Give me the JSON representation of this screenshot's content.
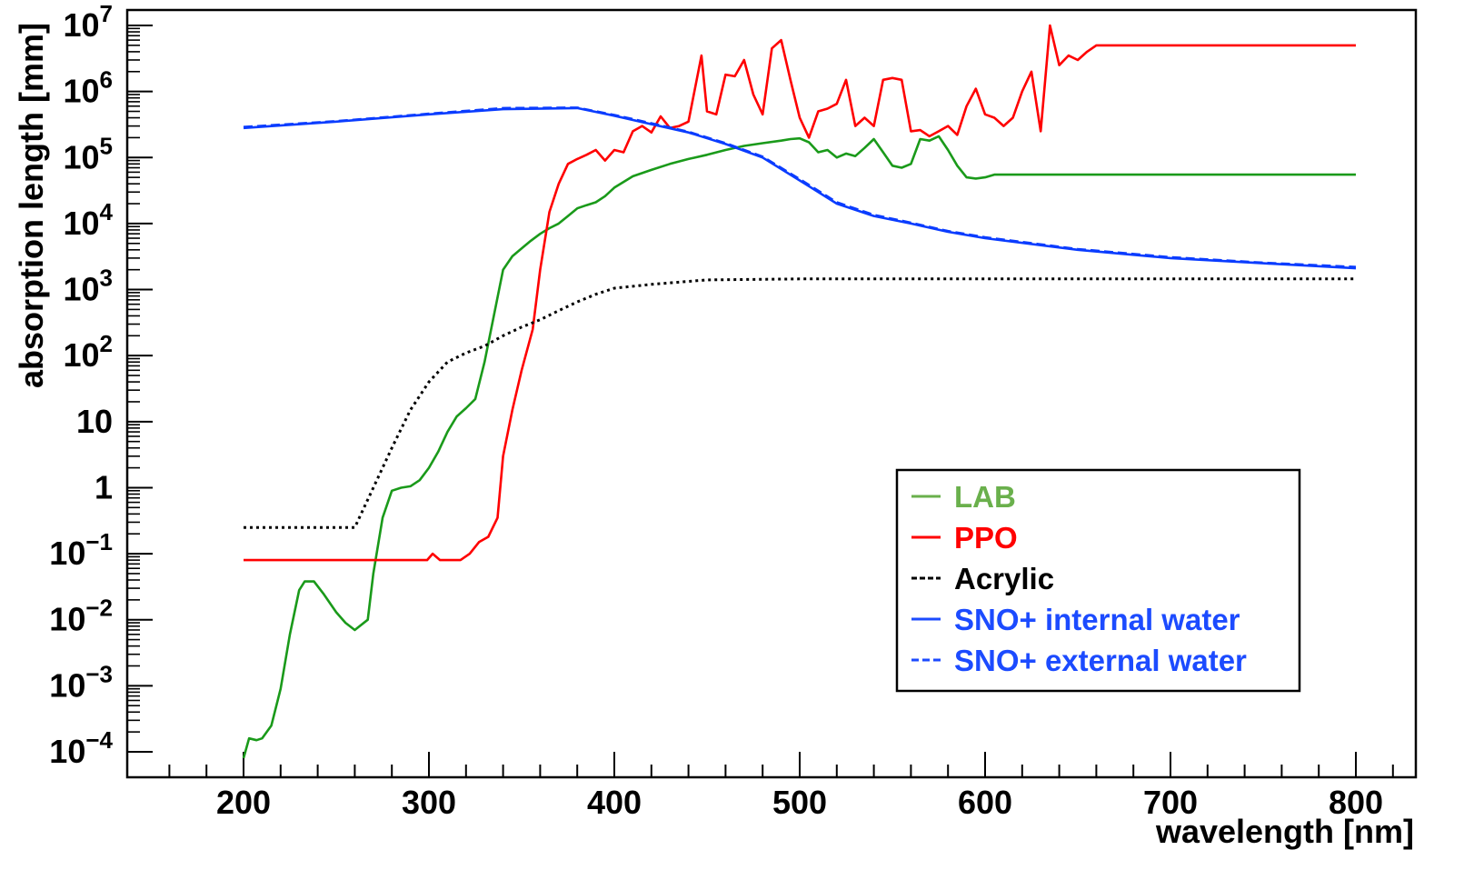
{
  "chart_data": {
    "type": "line",
    "title": "",
    "xlabel": "wavelength [nm]",
    "ylabel": "absorption length [mm]",
    "xlim": [
      140,
      860
    ],
    "ylim": [
      5e-05,
      20000000
    ],
    "yscale": "log",
    "grid": false,
    "legend_position": "bottom-right",
    "x_ticks": [
      {
        "value": 200,
        "label": "200"
      },
      {
        "value": 300,
        "label": "300"
      },
      {
        "value": 400,
        "label": "400"
      },
      {
        "value": 500,
        "label": "500"
      },
      {
        "value": 600,
        "label": "600"
      },
      {
        "value": 700,
        "label": "700"
      },
      {
        "value": 800,
        "label": "800"
      }
    ],
    "y_ticks": [
      {
        "value": 0.0001,
        "base": "10",
        "exp": "−4",
        "label": ""
      },
      {
        "value": 0.001,
        "base": "10",
        "exp": "−3",
        "label": ""
      },
      {
        "value": 0.01,
        "base": "10",
        "exp": "−2",
        "label": ""
      },
      {
        "value": 0.1,
        "base": "10",
        "exp": "−1",
        "label": ""
      },
      {
        "value": 1,
        "base": "",
        "exp": "",
        "label": "1"
      },
      {
        "value": 10,
        "base": "",
        "exp": "",
        "label": "10"
      },
      {
        "value": 100,
        "base": "10",
        "exp": "2",
        "label": ""
      },
      {
        "value": 1000,
        "base": "10",
        "exp": "3",
        "label": ""
      },
      {
        "value": 10000,
        "base": "10",
        "exp": "4",
        "label": ""
      },
      {
        "value": 100000,
        "base": "10",
        "exp": "5",
        "label": ""
      },
      {
        "value": 1000000,
        "base": "10",
        "exp": "6",
        "label": ""
      },
      {
        "value": 10000000,
        "base": "10",
        "exp": "7",
        "label": ""
      }
    ],
    "series": [
      {
        "name": "LAB",
        "color": "#1a9a1a",
        "legend_color": "#6ab04c",
        "style": "solid",
        "points": [
          [
            200,
            8e-05
          ],
          [
            203,
            0.00016
          ],
          [
            207,
            0.00015
          ],
          [
            210,
            0.00016
          ],
          [
            215,
            0.00025
          ],
          [
            220,
            0.0009
          ],
          [
            225,
            0.006
          ],
          [
            230,
            0.028
          ],
          [
            233,
            0.038
          ],
          [
            238,
            0.038
          ],
          [
            243,
            0.025
          ],
          [
            250,
            0.013
          ],
          [
            255,
            0.009
          ],
          [
            260,
            0.007
          ],
          [
            267,
            0.01
          ],
          [
            270,
            0.05
          ],
          [
            275,
            0.35
          ],
          [
            280,
            0.9
          ],
          [
            285,
            1.0
          ],
          [
            290,
            1.05
          ],
          [
            295,
            1.3
          ],
          [
            300,
            2.0
          ],
          [
            305,
            3.5
          ],
          [
            310,
            7
          ],
          [
            315,
            12
          ],
          [
            320,
            16
          ],
          [
            325,
            22
          ],
          [
            330,
            80
          ],
          [
            335,
            400
          ],
          [
            340,
            2000
          ],
          [
            345,
            3200
          ],
          [
            350,
            4200
          ],
          [
            355,
            5500
          ],
          [
            360,
            7000
          ],
          [
            365,
            8500
          ],
          [
            370,
            10000
          ],
          [
            375,
            13000
          ],
          [
            380,
            17000
          ],
          [
            385,
            19000
          ],
          [
            390,
            21000
          ],
          [
            395,
            26000
          ],
          [
            400,
            35000
          ],
          [
            410,
            52000
          ],
          [
            420,
            65000
          ],
          [
            430,
            80000
          ],
          [
            440,
            95000
          ],
          [
            450,
            110000
          ],
          [
            460,
            130000
          ],
          [
            470,
            150000
          ],
          [
            480,
            165000
          ],
          [
            490,
            180000
          ],
          [
            495,
            190000
          ],
          [
            500,
            195000
          ],
          [
            505,
            170000
          ],
          [
            510,
            120000
          ],
          [
            515,
            130000
          ],
          [
            520,
            100000
          ],
          [
            525,
            115000
          ],
          [
            530,
            105000
          ],
          [
            535,
            140000
          ],
          [
            540,
            190000
          ],
          [
            545,
            120000
          ],
          [
            550,
            75000
          ],
          [
            555,
            70000
          ],
          [
            560,
            80000
          ],
          [
            565,
            190000
          ],
          [
            570,
            180000
          ],
          [
            575,
            210000
          ],
          [
            580,
            130000
          ],
          [
            585,
            75000
          ],
          [
            590,
            50000
          ],
          [
            595,
            48000
          ],
          [
            600,
            50000
          ],
          [
            605,
            55000
          ],
          [
            650,
            55000
          ],
          [
            700,
            55000
          ],
          [
            750,
            55000
          ],
          [
            800,
            55000
          ]
        ]
      },
      {
        "name": "PPO",
        "color": "#ff0000",
        "legend_color": "#ff0000",
        "style": "solid",
        "points": [
          [
            200,
            0.08
          ],
          [
            250,
            0.08
          ],
          [
            299,
            0.08
          ],
          [
            302,
            0.1
          ],
          [
            306,
            0.08
          ],
          [
            317,
            0.08
          ],
          [
            322,
            0.1
          ],
          [
            327,
            0.15
          ],
          [
            332,
            0.18
          ],
          [
            337,
            0.35
          ],
          [
            340,
            3
          ],
          [
            345,
            15
          ],
          [
            350,
            60
          ],
          [
            356,
            250
          ],
          [
            360,
            2000
          ],
          [
            365,
            15000
          ],
          [
            370,
            40000
          ],
          [
            375,
            80000
          ],
          [
            380,
            95000
          ],
          [
            385,
            110000
          ],
          [
            390,
            130000
          ],
          [
            395,
            90000
          ],
          [
            400,
            130000
          ],
          [
            405,
            120000
          ],
          [
            410,
            250000
          ],
          [
            415,
            300000
          ],
          [
            420,
            240000
          ],
          [
            425,
            420000
          ],
          [
            430,
            280000
          ],
          [
            435,
            300000
          ],
          [
            440,
            350000
          ],
          [
            447,
            3500000
          ],
          [
            450,
            500000
          ],
          [
            455,
            450000
          ],
          [
            460,
            1800000
          ],
          [
            465,
            1700000
          ],
          [
            470,
            3000000
          ],
          [
            475,
            900000
          ],
          [
            480,
            450000
          ],
          [
            485,
            4500000
          ],
          [
            490,
            6000000
          ],
          [
            495,
            1500000
          ],
          [
            500,
            400000
          ],
          [
            505,
            200000
          ],
          [
            510,
            500000
          ],
          [
            515,
            550000
          ],
          [
            520,
            650000
          ],
          [
            525,
            1500000
          ],
          [
            530,
            300000
          ],
          [
            535,
            400000
          ],
          [
            540,
            300000
          ],
          [
            545,
            1500000
          ],
          [
            550,
            1600000
          ],
          [
            555,
            1500000
          ],
          [
            560,
            250000
          ],
          [
            565,
            260000
          ],
          [
            570,
            210000
          ],
          [
            575,
            250000
          ],
          [
            580,
            300000
          ],
          [
            585,
            220000
          ],
          [
            590,
            600000
          ],
          [
            595,
            1100000
          ],
          [
            600,
            450000
          ],
          [
            605,
            400000
          ],
          [
            610,
            300000
          ],
          [
            615,
            400000
          ],
          [
            620,
            1000000
          ],
          [
            625,
            2000000
          ],
          [
            630,
            250000
          ],
          [
            635,
            10000000
          ],
          [
            640,
            2500000
          ],
          [
            645,
            3500000
          ],
          [
            650,
            3000000
          ],
          [
            655,
            4000000
          ],
          [
            660,
            5000000
          ],
          [
            700,
            5000000
          ],
          [
            750,
            5000000
          ],
          [
            800,
            5000000
          ]
        ]
      },
      {
        "name": "Acrylic",
        "color": "#000000",
        "legend_color": "#000000",
        "style": "dotted",
        "points": [
          [
            200,
            0.25
          ],
          [
            230,
            0.25
          ],
          [
            260,
            0.25
          ],
          [
            270,
            1
          ],
          [
            280,
            4
          ],
          [
            290,
            15
          ],
          [
            300,
            40
          ],
          [
            310,
            80
          ],
          [
            320,
            110
          ],
          [
            330,
            140
          ],
          [
            340,
            200
          ],
          [
            350,
            270
          ],
          [
            360,
            350
          ],
          [
            370,
            480
          ],
          [
            380,
            650
          ],
          [
            390,
            850
          ],
          [
            400,
            1050
          ],
          [
            420,
            1200
          ],
          [
            450,
            1400
          ],
          [
            500,
            1450
          ],
          [
            600,
            1450
          ],
          [
            700,
            1450
          ],
          [
            800,
            1450
          ]
        ]
      },
      {
        "name": "SNO+ internal water",
        "color": "#0a3cff",
        "legend_color": "#1c4bff",
        "style": "solid",
        "points": [
          [
            200,
            280000
          ],
          [
            250,
            350000
          ],
          [
            300,
            450000
          ],
          [
            340,
            540000
          ],
          [
            380,
            560000
          ],
          [
            400,
            430000
          ],
          [
            420,
            320000
          ],
          [
            440,
            240000
          ],
          [
            460,
            160000
          ],
          [
            480,
            100000
          ],
          [
            500,
            45000
          ],
          [
            520,
            20000
          ],
          [
            540,
            13000
          ],
          [
            560,
            10000
          ],
          [
            580,
            7500
          ],
          [
            600,
            6000
          ],
          [
            650,
            4000
          ],
          [
            700,
            3000
          ],
          [
            750,
            2500
          ],
          [
            800,
            2100
          ]
        ]
      },
      {
        "name": "SNO+ external water",
        "color": "#0a3cff",
        "legend_color": "#1c4bff",
        "style": "dashed",
        "points": [
          [
            200,
            290000
          ],
          [
            250,
            355000
          ],
          [
            300,
            460000
          ],
          [
            340,
            560000
          ],
          [
            380,
            570000
          ],
          [
            400,
            440000
          ],
          [
            420,
            330000
          ],
          [
            440,
            245000
          ],
          [
            460,
            165000
          ],
          [
            480,
            103000
          ],
          [
            500,
            47000
          ],
          [
            520,
            21000
          ],
          [
            540,
            13500
          ],
          [
            560,
            10300
          ],
          [
            580,
            7700
          ],
          [
            600,
            6200
          ],
          [
            650,
            4100
          ],
          [
            700,
            3100
          ],
          [
            750,
            2550
          ],
          [
            800,
            2200
          ]
        ]
      }
    ]
  }
}
